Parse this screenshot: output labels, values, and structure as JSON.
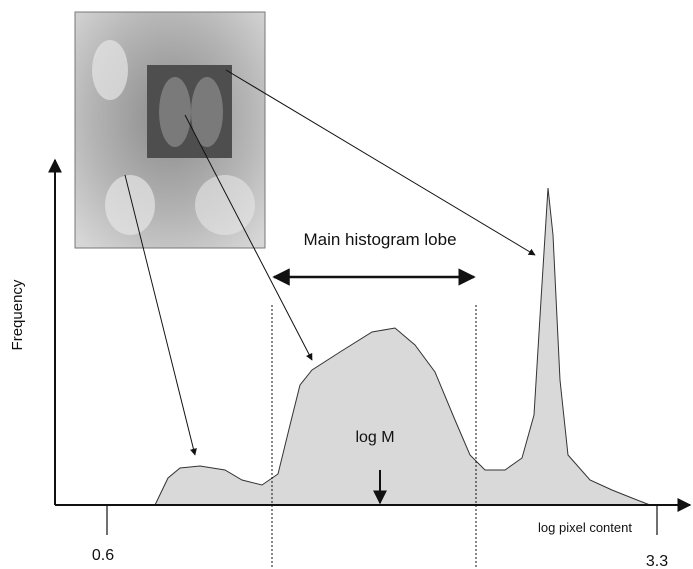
{
  "title": "Main histogram lobe",
  "y_axis_label": "Frequency",
  "x_axis_label": "log pixel content",
  "marker_label": "log M",
  "x_tick_left": "0.6",
  "x_tick_right": "3.3"
}
